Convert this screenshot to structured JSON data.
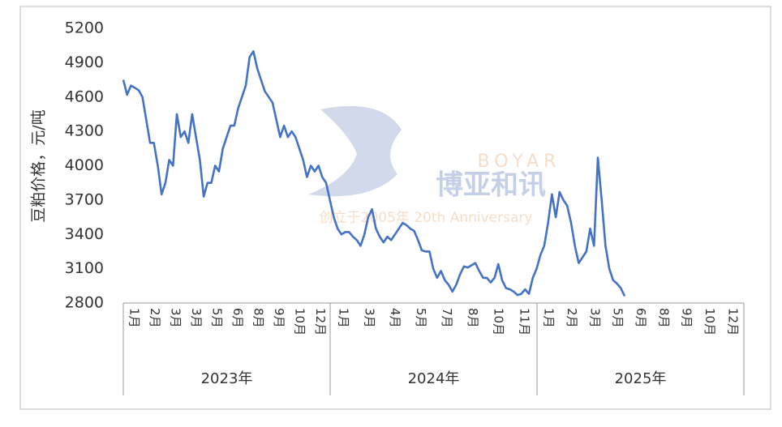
{
  "chart_data": {
    "type": "line",
    "y_label": "豆粕价格，元/吨",
    "ylim": [
      2800,
      5200
    ],
    "yticks": [
      2800,
      3100,
      3400,
      3700,
      4000,
      4300,
      4600,
      4900,
      5200
    ],
    "grid": false,
    "year_groups": [
      {
        "year": "2023年",
        "months": [
          "1月",
          "2月",
          "3月",
          "3月",
          "5月",
          "6月",
          "8月",
          "9月",
          "10月",
          "12月"
        ]
      },
      {
        "year": "2024年",
        "months": [
          "1月",
          "3月",
          "4月",
          "5月",
          "7月",
          "8月",
          "10月",
          "11月"
        ]
      },
      {
        "year": "2025年",
        "months": [
          "1月",
          "2月",
          "3月",
          "5月",
          "6月",
          "8月",
          "9月",
          "10月",
          "12月"
        ]
      }
    ],
    "watermark": {
      "brand": "BOYAR",
      "name": "博亚和讯",
      "tagline": "创立于2005年 20th Anniversary"
    },
    "series": [
      {
        "name": "豆粕价格",
        "color": "#4472c4",
        "values": [
          4750,
          4620,
          4700,
          4680,
          4660,
          4600,
          4400,
          4200,
          4200,
          4000,
          3750,
          3850,
          4050,
          4000,
          4450,
          4250,
          4300,
          4200,
          4450,
          4250,
          4050,
          3730,
          3850,
          3850,
          4000,
          3950,
          4150,
          4250,
          4350,
          4350,
          4500,
          4600,
          4700,
          4950,
          5000,
          4850,
          4750,
          4650,
          4600,
          4550,
          4400,
          4250,
          4350,
          4250,
          4300,
          4250,
          4150,
          4050,
          3900,
          4000,
          3950,
          4000,
          3900,
          3850,
          3700,
          3550,
          3450,
          3400,
          3420,
          3420,
          3380,
          3350,
          3300,
          3400,
          3550,
          3620,
          3450,
          3380,
          3330,
          3380,
          3350,
          3400,
          3450,
          3500,
          3480,
          3450,
          3430,
          3350,
          3260,
          3250,
          3250,
          3100,
          3020,
          3080,
          3000,
          2960,
          2900,
          2960,
          3050,
          3120,
          3110,
          3130,
          3150,
          3080,
          3020,
          3020,
          2980,
          3020,
          3140,
          3000,
          2930,
          2920,
          2900,
          2870,
          2880,
          2920,
          2880,
          3020,
          3100,
          3220,
          3300,
          3500,
          3750,
          3550,
          3770,
          3700,
          3650,
          3500,
          3300,
          3150,
          3200,
          3250,
          3450,
          3300,
          4070,
          3700,
          3300,
          3100,
          3000,
          2970,
          2930,
          2860
        ]
      }
    ]
  }
}
